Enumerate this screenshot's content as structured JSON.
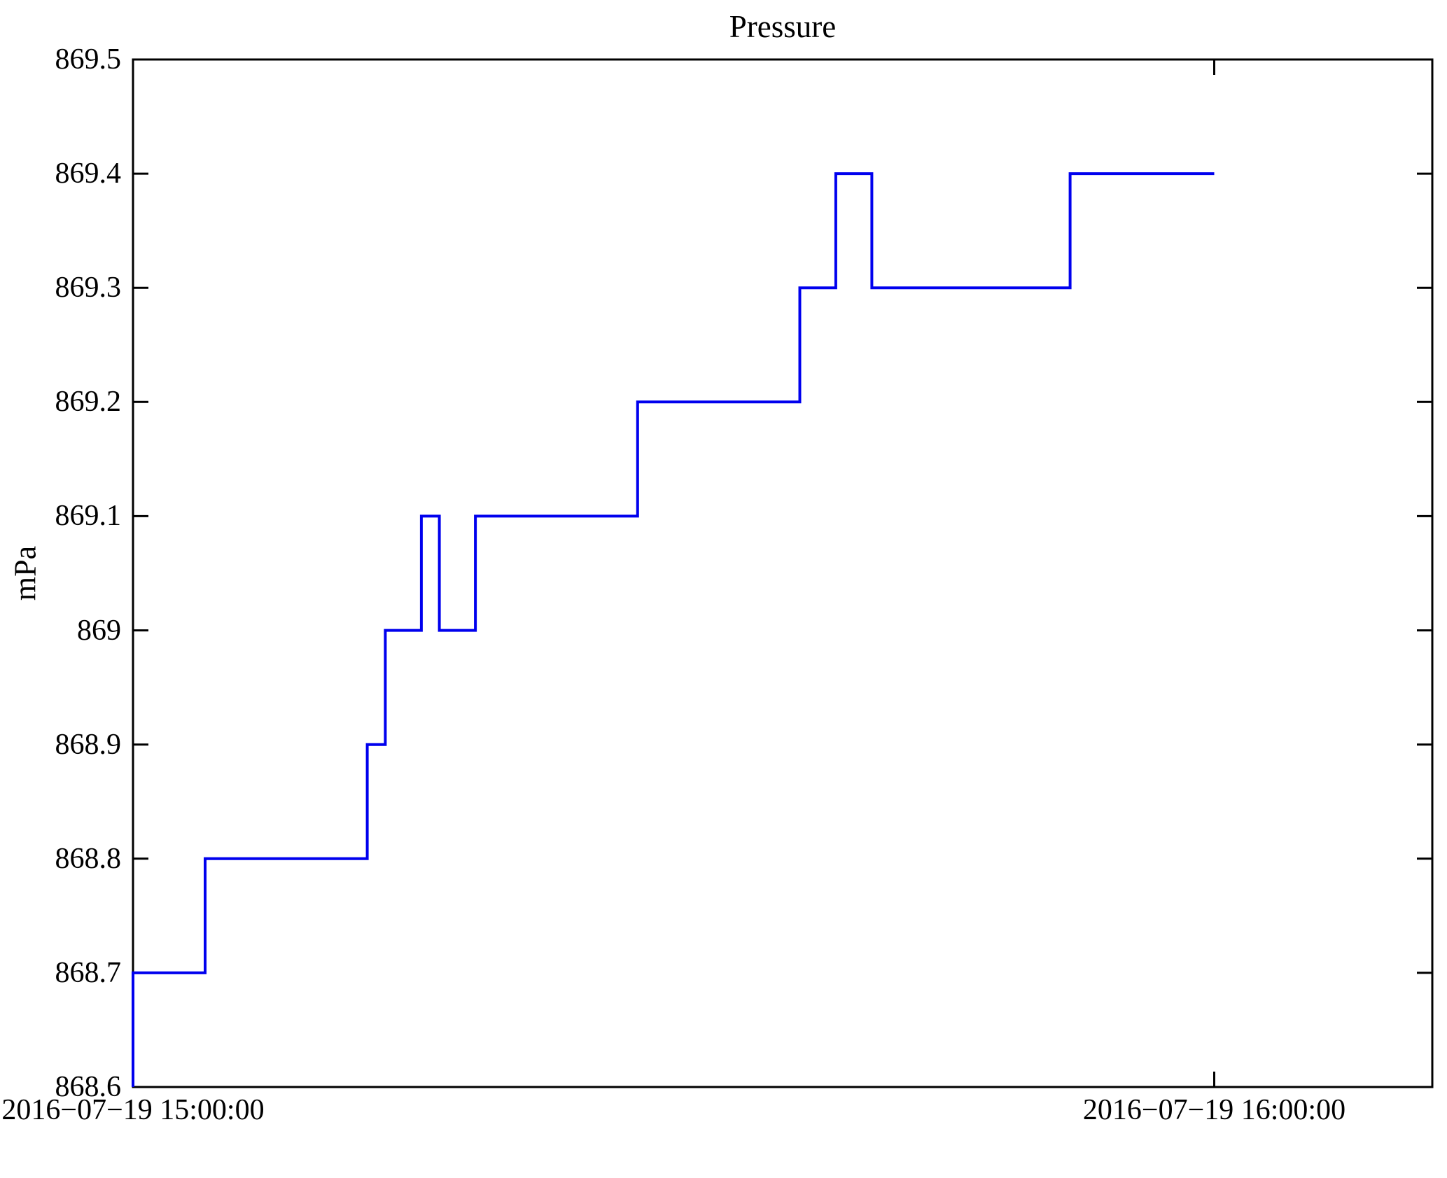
{
  "figure": {
    "background_color": "#ffffff"
  },
  "chart_data": {
    "type": "line",
    "title": "Pressure",
    "ylabel": "mPa",
    "xlabel": "",
    "grid": false,
    "legend": false,
    "step": "post",
    "line_color": "#0000ee",
    "axis_color": "#000000",
    "x_unit": "minutes after 2016-07-19 15:00:00",
    "xlim": [
      0,
      72.1
    ],
    "ylim": [
      868.6,
      869.5
    ],
    "xticks": [
      {
        "t": 0,
        "label": "2016−07−19 15:00:00"
      },
      {
        "t": 60,
        "label": "2016−07−19 16:00:00"
      }
    ],
    "yticks": [
      {
        "v": 868.6,
        "label": "868.6"
      },
      {
        "v": 868.7,
        "label": "868.7"
      },
      {
        "v": 868.8,
        "label": "868.8"
      },
      {
        "v": 868.9,
        "label": "868.9"
      },
      {
        "v": 869.0,
        "label": "869"
      },
      {
        "v": 869.1,
        "label": "869.1"
      },
      {
        "v": 869.2,
        "label": "869.2"
      },
      {
        "v": 869.3,
        "label": "869.3"
      },
      {
        "v": 869.4,
        "label": "869.4"
      },
      {
        "v": 869.5,
        "label": "869.5"
      }
    ],
    "series": [
      {
        "name": "Pressure",
        "points": [
          {
            "t": 0,
            "v": 868.6
          },
          {
            "t": 0,
            "v": 868.7
          },
          {
            "t": 4,
            "v": 868.8
          },
          {
            "t": 13,
            "v": 868.9
          },
          {
            "t": 14,
            "v": 869.0
          },
          {
            "t": 16,
            "v": 869.1
          },
          {
            "t": 17,
            "v": 869.0
          },
          {
            "t": 19,
            "v": 869.1
          },
          {
            "t": 28,
            "v": 869.2
          },
          {
            "t": 37,
            "v": 869.3
          },
          {
            "t": 39,
            "v": 869.4
          },
          {
            "t": 41,
            "v": 869.3
          },
          {
            "t": 52,
            "v": 869.4
          },
          {
            "t": 60,
            "v": 869.4
          }
        ]
      }
    ]
  }
}
